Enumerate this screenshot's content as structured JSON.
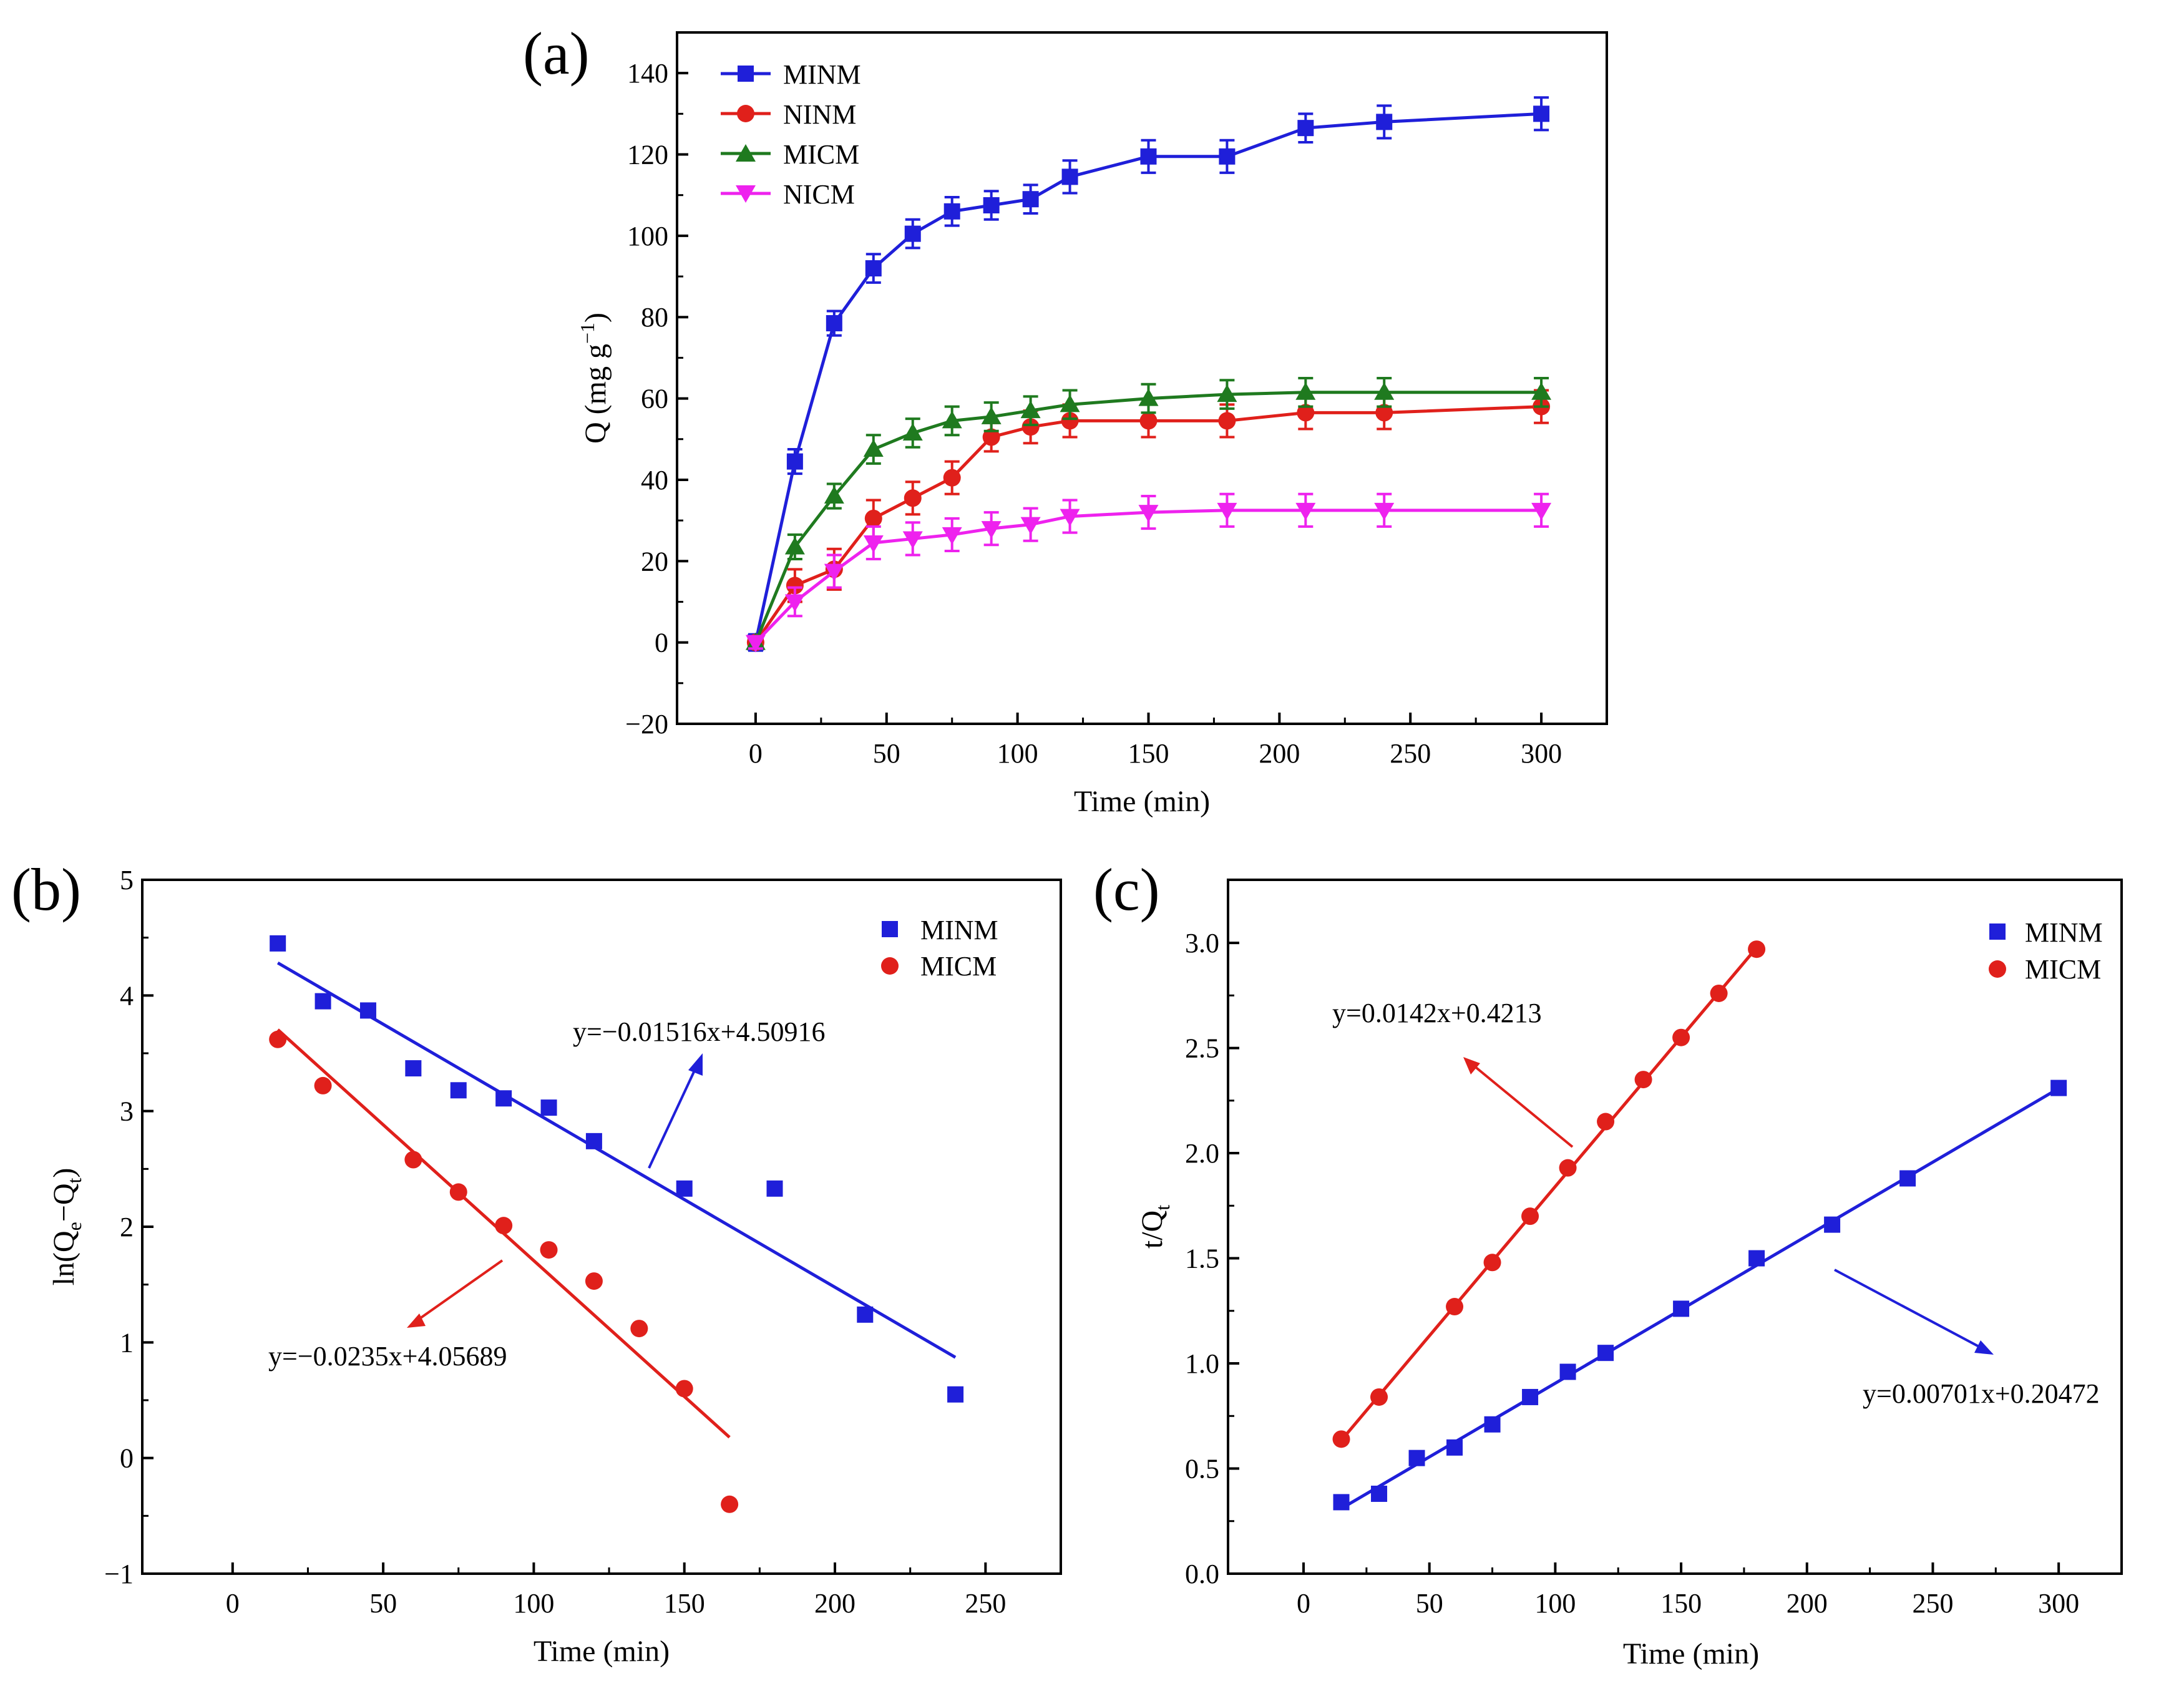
{
  "chart_data": [
    {
      "id": "a",
      "panel_label": "(a)",
      "type": "line",
      "title": "",
      "xlabel": "Time (min)",
      "ylabel": "Q (mg g",
      "ylabel_sup": "−1",
      "ylabel_close": ")",
      "xlim": [
        -30,
        325
      ],
      "ylim": [
        -20,
        150
      ],
      "xticks": [
        0,
        50,
        100,
        150,
        200,
        250,
        300
      ],
      "yticks": [
        -20,
        0,
        20,
        40,
        60,
        80,
        100,
        120,
        140
      ],
      "yticklabels": [
        "−20",
        "0",
        "20",
        "40",
        "60",
        "80",
        "100",
        "120",
        "140"
      ],
      "x": [
        0,
        15,
        30,
        45,
        60,
        75,
        90,
        105,
        120,
        150,
        180,
        210,
        240,
        300
      ],
      "legend_position": "top-left",
      "series": [
        {
          "name": "MINM",
          "color": "#1f1fd9",
          "marker": "square",
          "values": [
            0,
            44.5,
            78.5,
            92,
            100.5,
            106,
            107.5,
            109,
            114.5,
            119.5,
            119.5,
            126.5,
            128,
            130
          ],
          "errors": [
            2,
            3,
            3,
            3.5,
            3.5,
            3.5,
            3.5,
            3.5,
            4,
            4,
            4,
            3.5,
            4,
            4
          ]
        },
        {
          "name": "NINM",
          "color": "#e0201b",
          "marker": "circle",
          "values": [
            0,
            14,
            18,
            30.5,
            35.5,
            40.5,
            50.5,
            53,
            54.5,
            54.5,
            54.5,
            56.5,
            56.5,
            58
          ],
          "errors": [
            1.5,
            4,
            5,
            4.5,
            4,
            4,
            3.5,
            4,
            4,
            4,
            4,
            4,
            4,
            4
          ]
        },
        {
          "name": "MICM",
          "color": "#1f7a1f",
          "marker": "triangle-up",
          "values": [
            0,
            23.5,
            36,
            47.5,
            51.5,
            54.5,
            55.5,
            57,
            58.5,
            60,
            61,
            61.5,
            61.5,
            61.5
          ],
          "errors": [
            1.5,
            3,
            3,
            3.5,
            3.5,
            3.5,
            3.5,
            3.5,
            3.5,
            3.5,
            3.5,
            3.5,
            3.5,
            3.5
          ]
        },
        {
          "name": "NICM",
          "color": "#ee22ee",
          "marker": "triangle-down",
          "values": [
            0,
            10,
            17.5,
            24.5,
            25.5,
            26.5,
            28,
            29,
            31,
            32,
            32.5,
            32.5,
            32.5,
            32.5
          ],
          "errors": [
            1.5,
            3.5,
            4,
            4,
            4,
            4,
            4,
            4,
            4,
            4,
            4,
            4,
            4,
            4
          ]
        }
      ]
    },
    {
      "id": "b",
      "panel_label": "(b)",
      "type": "scatter",
      "title": "",
      "xlabel": "Time (min)",
      "ylabel": "ln(Q",
      "ylabel_sub1": "e",
      "ylabel_mid": "−Q",
      "ylabel_sub2": "t",
      "ylabel_close": ")",
      "xlim": [
        -30,
        275
      ],
      "ylim": [
        -1,
        5
      ],
      "xticks": [
        0,
        50,
        100,
        150,
        200,
        250
      ],
      "yticks": [
        -1,
        0,
        1,
        2,
        3,
        4,
        5
      ],
      "yticklabels": [
        "−1",
        "0",
        "1",
        "2",
        "3",
        "4",
        "5"
      ],
      "legend_position": "top-right",
      "series": [
        {
          "name": "MINM",
          "color": "#1f1fd9",
          "marker": "square",
          "x": [
            15,
            30,
            45,
            60,
            75,
            90,
            105,
            120,
            150,
            180,
            210,
            240
          ],
          "y": [
            4.45,
            3.95,
            3.87,
            3.37,
            3.18,
            3.11,
            3.03,
            2.74,
            2.33,
            2.33,
            1.24,
            0.55
          ],
          "fit": {
            "slope": -0.01516,
            "intercept": 4.50916,
            "x_range": [
              15,
              240
            ]
          },
          "equation": "y=−0.01516x+4.50916"
        },
        {
          "name": "MICM",
          "color": "#e0201b",
          "marker": "circle",
          "x": [
            15,
            30,
            60,
            75,
            90,
            105,
            120,
            135,
            150,
            165
          ],
          "y": [
            3.62,
            3.22,
            2.58,
            2.3,
            2.01,
            1.8,
            1.53,
            1.12,
            0.6,
            -0.4
          ],
          "fit": {
            "slope": -0.0235,
            "intercept": 4.05689,
            "x_range": [
              15,
              165
            ]
          },
          "equation": "y=−0.0235x+4.05689"
        }
      ]
    },
    {
      "id": "c",
      "panel_label": "(c)",
      "type": "scatter",
      "title": "",
      "xlabel": "Time (min)",
      "ylabel": "t/Q",
      "ylabel_sub": "t",
      "xlim": [
        -30,
        325
      ],
      "ylim": [
        0,
        3.3
      ],
      "xticks": [
        0,
        50,
        100,
        150,
        200,
        250,
        300
      ],
      "yticks": [
        0,
        0.5,
        1.0,
        1.5,
        2.0,
        2.5,
        3.0
      ],
      "yticklabels": [
        "0.0",
        "0.5",
        "1.0",
        "1.5",
        "2.0",
        "2.5",
        "3.0"
      ],
      "legend_position": "top-right",
      "series": [
        {
          "name": "MINM",
          "color": "#1f1fd9",
          "marker": "square",
          "x": [
            15,
            30,
            45,
            60,
            75,
            90,
            105,
            120,
            150,
            180,
            210,
            240,
            300
          ],
          "y": [
            0.34,
            0.38,
            0.55,
            0.6,
            0.71,
            0.84,
            0.96,
            1.05,
            1.26,
            1.5,
            1.66,
            1.88,
            2.31
          ],
          "fit": {
            "slope": 0.00701,
            "intercept": 0.20472,
            "x_range": [
              15,
              300
            ]
          },
          "equation": "y=0.00701x+0.20472"
        },
        {
          "name": "MICM",
          "color": "#e0201b",
          "marker": "circle",
          "x": [
            15,
            30,
            60,
            75,
            90,
            105,
            120,
            135,
            150,
            165,
            180
          ],
          "y": [
            0.64,
            0.84,
            1.27,
            1.48,
            1.7,
            1.93,
            2.15,
            2.35,
            2.55,
            2.76,
            2.97
          ],
          "fit": {
            "slope": 0.0142,
            "intercept": 0.4213,
            "x_range": [
              15,
              180
            ]
          },
          "equation": "y=0.0142x+0.4213"
        }
      ]
    }
  ]
}
